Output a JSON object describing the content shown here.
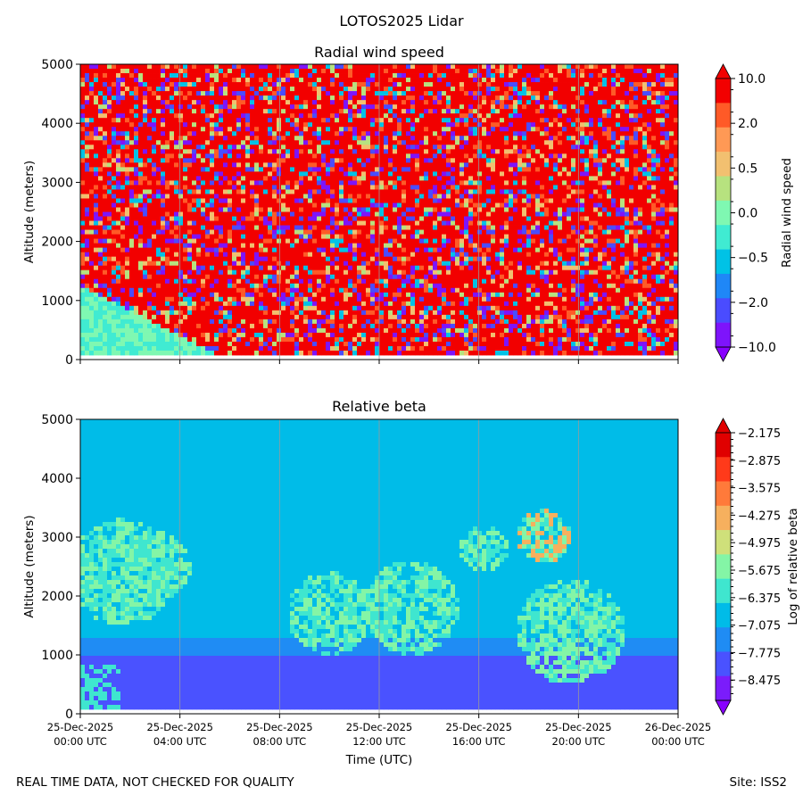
{
  "figure": {
    "suptitle": "LOTOS2025 Lidar",
    "footer_left": "REAL TIME DATA, NOT CHECKED FOR QUALITY",
    "footer_right": "Site: ISS2"
  },
  "chart_data": [
    {
      "type": "heatmap",
      "title": "Radial wind speed",
      "ylabel": "Altitude (meters)",
      "yticks": [
        "0",
        "1000",
        "2000",
        "3000",
        "4000",
        "5000"
      ],
      "ylim": [
        0,
        5000
      ],
      "xlim": [
        "25-Dec-2025 00:00 UTC",
        "26-Dec-2025 00:00 UTC"
      ],
      "colorbar": {
        "label": "Radial wind speed",
        "ticks": [
          "10.0",
          "2.0",
          "0.5",
          "0.0",
          "−0.5",
          "−2.0",
          "−10.0"
        ],
        "colors": [
          "#f20000",
          "#ff5a27",
          "#ff9955",
          "#f2c070",
          "#b7e27f",
          "#7ff8b2",
          "#40ebd2",
          "#00c2e6",
          "#1f87f7",
          "#4a4cff",
          "#7e14fb",
          "#8800ff"
        ]
      }
    },
    {
      "type": "heatmap",
      "title": "Relative beta",
      "ylabel": "Altitude (meters)",
      "xlabel": "Time (UTC)",
      "yticks": [
        "0",
        "1000",
        "2000",
        "3000",
        "4000",
        "5000"
      ],
      "ylim": [
        0,
        5000
      ],
      "xticks": [
        {
          "date": "25-Dec-2025",
          "time": "00:00 UTC"
        },
        {
          "date": "25-Dec-2025",
          "time": "04:00 UTC"
        },
        {
          "date": "25-Dec-2025",
          "time": "08:00 UTC"
        },
        {
          "date": "25-Dec-2025",
          "time": "12:00 UTC"
        },
        {
          "date": "25-Dec-2025",
          "time": "16:00 UTC"
        },
        {
          "date": "25-Dec-2025",
          "time": "20:00 UTC"
        },
        {
          "date": "26-Dec-2025",
          "time": "00:00 UTC"
        }
      ],
      "colorbar": {
        "label": "Log of relative beta",
        "ticks": [
          "−2.175",
          "−2.875",
          "−3.575",
          "−4.275",
          "−4.975",
          "−5.675",
          "−6.375",
          "−7.075",
          "−7.775",
          "−8.475"
        ],
        "colors": [
          "#e00000",
          "#ff3a1a",
          "#ff7a3a",
          "#f6b05e",
          "#cfe07a",
          "#84f5a6",
          "#3fe6cf",
          "#00bce8",
          "#1f8cf4",
          "#4a52ff",
          "#7b1cfb",
          "#8800ff"
        ]
      }
    }
  ]
}
